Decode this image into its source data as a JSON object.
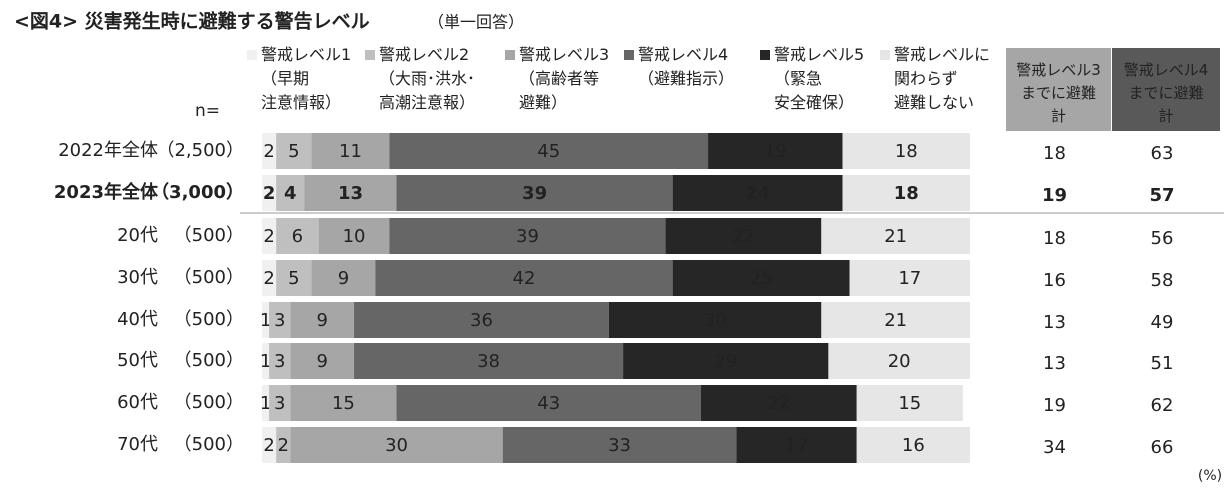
{
  "chart_data": {
    "type": "bar",
    "orientation": "horizontal",
    "stacked": true,
    "title": "<図4> 災害発生時に避難する警告レベル",
    "subtitle": "（単一回答）",
    "n_label": "n=",
    "unit_note": "(%)",
    "xlim": [
      0,
      100
    ],
    "categories": [
      "2022年全体",
      "2023年全体",
      "20代",
      "30代",
      "40代",
      "50代",
      "60代",
      "70代"
    ],
    "sample_sizes": [
      "（2,500）",
      "（3,000）",
      "（500）",
      "（500）",
      "（500）",
      "（500）",
      "（500）",
      "（500）"
    ],
    "bold_rows": [
      1
    ],
    "series": [
      {
        "name": "警戒レベル1\n（早期\n注意情報）",
        "color": "#f0f0f0",
        "label_color": "#333333",
        "values": [
          2,
          2,
          2,
          2,
          1,
          1,
          1,
          2
        ]
      },
      {
        "name": "警戒レベル2\n（大雨･洪水･\n高潮注意報）",
        "color": "#bfbfbf",
        "label_color": "#ffffff",
        "values": [
          5,
          4,
          6,
          5,
          3,
          3,
          3,
          2
        ]
      },
      {
        "name": "警戒レベル3\n（高齢者等\n避難）",
        "color": "#a6a6a6",
        "label_color": "#ffffff",
        "values": [
          11,
          13,
          10,
          9,
          9,
          9,
          15,
          30
        ]
      },
      {
        "name": "警戒レベル4\n（避難指示）",
        "color": "#666666",
        "label_color": "#ffffff",
        "values": [
          45,
          39,
          39,
          42,
          36,
          38,
          43,
          33
        ]
      },
      {
        "name": "警戒レベル5\n（緊急\n安全確保）",
        "color": "#262626",
        "label_color": "#ffffff",
        "values": [
          19,
          24,
          22,
          25,
          30,
          29,
          22,
          17
        ]
      },
      {
        "name": "警戒レベルに\n関わらず\n避難しない",
        "color": "#e6e6e6",
        "label_color": "#555555",
        "values": [
          18,
          18,
          21,
          17,
          21,
          20,
          15,
          16
        ]
      }
    ],
    "totals": [
      {
        "name": "警戒レベル3\nまでに避難\n計",
        "color": "#a6a6a6",
        "values": [
          18,
          19,
          18,
          16,
          13,
          13,
          19,
          34
        ]
      },
      {
        "name": "警戒レベル4\nまでに避難\n計",
        "color": "#595959",
        "values": [
          63,
          57,
          56,
          58,
          49,
          51,
          62,
          66
        ]
      }
    ]
  }
}
